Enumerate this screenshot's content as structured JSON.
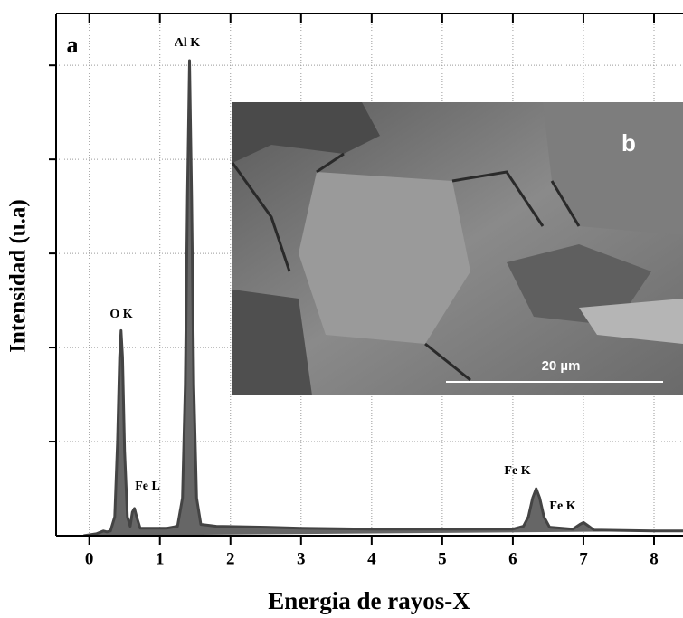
{
  "chart_data": {
    "type": "line",
    "x_label": "Energia de rayos-X",
    "y_label": "Intensidad (u.a)",
    "x": [
      -0.08,
      0.1,
      0.2,
      0.25,
      0.3,
      0.36,
      0.4,
      0.43,
      0.45,
      0.47,
      0.5,
      0.54,
      0.58,
      0.61,
      0.64,
      0.67,
      0.72,
      0.9,
      1.1,
      1.25,
      1.32,
      1.36,
      1.39,
      1.42,
      1.45,
      1.48,
      1.52,
      1.58,
      1.8,
      2.5,
      3,
      4,
      5,
      6,
      6.15,
      6.22,
      6.28,
      6.33,
      6.38,
      6.44,
      6.52,
      6.85,
      6.95,
      7.0,
      7.06,
      7.15,
      8,
      8.41
    ],
    "series": [
      {
        "color": "#444444",
        "values": [
          0.0,
          0.02,
          0.05,
          0.04,
          0.05,
          0.2,
          1.0,
          1.9,
          2.18,
          1.9,
          0.9,
          0.2,
          0.1,
          0.25,
          0.29,
          0.2,
          0.08,
          0.08,
          0.08,
          0.1,
          0.4,
          1.6,
          3.6,
          5.05,
          3.6,
          1.6,
          0.4,
          0.12,
          0.1,
          0.09,
          0.08,
          0.07,
          0.07,
          0.07,
          0.1,
          0.2,
          0.4,
          0.5,
          0.4,
          0.2,
          0.09,
          0.07,
          0.12,
          0.14,
          0.11,
          0.06,
          0.05,
          0.05
        ]
      }
    ],
    "xlim": [
      -0.47,
      8.41
    ],
    "xticks": [
      0,
      1,
      2,
      3,
      4,
      5,
      6,
      7,
      8
    ],
    "ylim": [
      0,
      5.55
    ],
    "yticks": [
      1,
      2,
      3,
      4,
      5
    ],
    "grid": true,
    "annotations": [
      "a",
      "Al K",
      "O K",
      "Fe L",
      "Fe K",
      "Fe K"
    ],
    "inset": {
      "label": "b",
      "scale_bar": "20 µm"
    }
  }
}
